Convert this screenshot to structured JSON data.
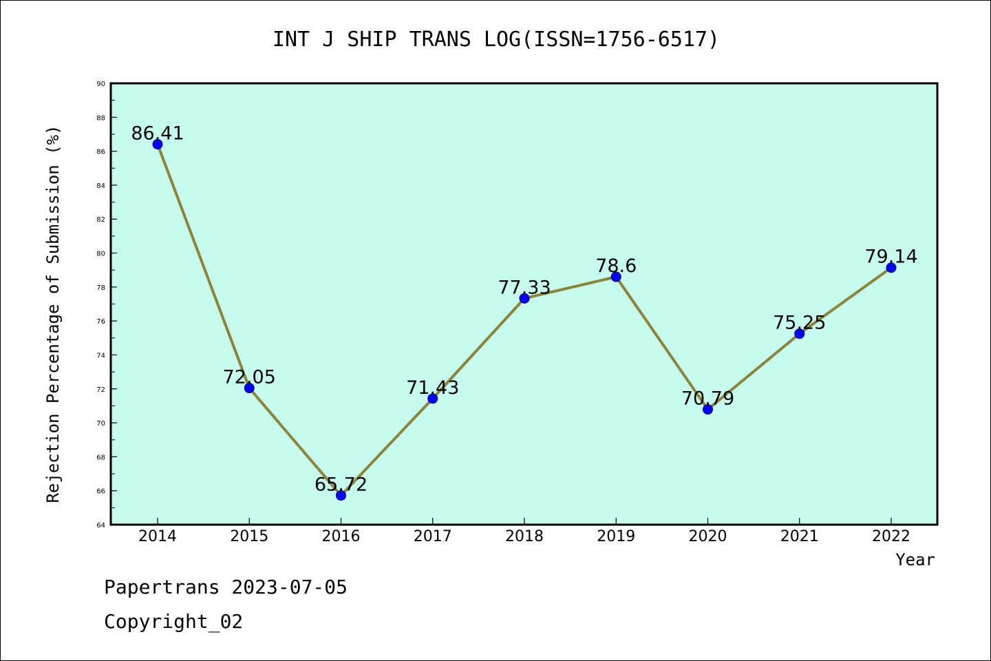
{
  "chart_data": {
    "type": "line",
    "title": "INT J SHIP TRANS LOG(ISSN=1756-6517)",
    "xlabel": "Year",
    "ylabel": "Rejection Percentage of Submission (%)",
    "categories": [
      "2014",
      "2015",
      "2016",
      "2017",
      "2018",
      "2019",
      "2020",
      "2021",
      "2022"
    ],
    "series": [
      {
        "values": [
          86.41,
          72.05,
          65.72,
          71.43,
          77.33,
          78.6,
          70.79,
          75.25,
          79.14
        ],
        "labels": [
          "86.41",
          "72.05",
          "65.72",
          "71.43",
          "77.33",
          "78.6",
          "70.79",
          "75.25",
          "79.14"
        ]
      }
    ],
    "ylim": [
      64,
      90
    ],
    "yticks": [
      "64",
      "66",
      "68",
      "70",
      "72",
      "74",
      "76",
      "78",
      "80",
      "82",
      "84",
      "86",
      "88",
      "90"
    ],
    "grid": false,
    "colors": {
      "plot_background": "#c6fcee",
      "line": "#8b8439",
      "marker": "#0000ff"
    }
  },
  "footer": {
    "line1": "Papertrans 2023-07-05",
    "line2": "Copyright_02"
  }
}
